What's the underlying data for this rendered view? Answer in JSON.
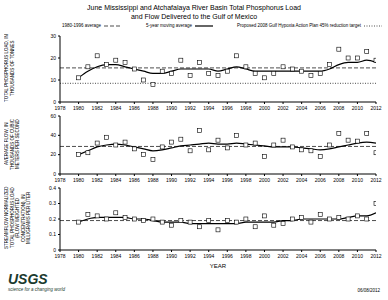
{
  "chart_data": [
    {
      "type": "line",
      "title": [
        "June Mississippi and Atchafalaya River Basin Total Phosphorus Load",
        "and Flow Delivered to the Gulf of Mexico"
      ],
      "y_label": "TOTAL PHOSPHORUS LOAD, IN THOUSANDS OF TONNES",
      "x": [
        1980,
        1981,
        1982,
        1983,
        1984,
        1985,
        1986,
        1987,
        1988,
        1989,
        1990,
        1991,
        1992,
        1993,
        1994,
        1995,
        1996,
        1997,
        1998,
        1999,
        2000,
        2001,
        2002,
        2003,
        2004,
        2005,
        2006,
        2007,
        2008,
        2009,
        2010,
        2011,
        2012
      ],
      "xlim": [
        1978,
        2012
      ],
      "xticks": [
        1978,
        1980,
        1982,
        1984,
        1986,
        1988,
        1990,
        1992,
        1994,
        1996,
        1998,
        2000,
        2002,
        2004,
        2006,
        2008,
        2010,
        2012
      ],
      "ylim": [
        0,
        30
      ],
      "yticks": [
        0,
        10,
        20,
        30
      ],
      "series": [
        {
          "type": "scatter",
          "marker": "square",
          "color": "#000000",
          "values": [
            11,
            16,
            21,
            17,
            19,
            18,
            15,
            10,
            8,
            14,
            13,
            19,
            12,
            18,
            13,
            12,
            14,
            21,
            16,
            13,
            11,
            13,
            16,
            15,
            14,
            12,
            13,
            17,
            24,
            20,
            20,
            23,
            19
          ]
        },
        {
          "name": "1980-1996 average",
          "type": "line",
          "line_style": "dashed",
          "color": "#000000",
          "x": [
            1978,
            2012
          ],
          "values": [
            15.5,
            15.5
          ]
        },
        {
          "name": "5-year moving average",
          "type": "line",
          "line_style": "solid",
          "color": "#000000",
          "values": [
            11,
            14,
            16,
            17,
            17,
            16,
            15,
            14,
            13,
            13,
            14,
            15,
            15,
            15,
            15,
            14,
            15,
            16,
            15,
            14,
            14,
            14,
            14,
            14,
            14,
            14,
            14,
            15,
            17,
            18,
            18,
            19,
            18
          ]
        },
        {
          "name": "Proposed 2008 Gulf Hypoxia Action Plan 45% reduction target",
          "type": "line",
          "line_style": "dotted",
          "color": "#000000",
          "x": [
            1978,
            2012
          ],
          "values": [
            8.5,
            8.5
          ]
        }
      ]
    },
    {
      "type": "line",
      "y_label": "AVERAGE FLOW, IN THOUSANDS OF CUBIC METERS PER SECOND",
      "x": [
        1980,
        1981,
        1982,
        1983,
        1984,
        1985,
        1986,
        1987,
        1988,
        1989,
        1990,
        1991,
        1992,
        1993,
        1994,
        1995,
        1996,
        1997,
        1998,
        1999,
        2000,
        2001,
        2002,
        2003,
        2004,
        2005,
        2006,
        2007,
        2008,
        2009,
        2010,
        2011,
        2012
      ],
      "xlim": [
        1978,
        2012
      ],
      "xticks": [
        1978,
        1980,
        1982,
        1984,
        1986,
        1988,
        1990,
        1992,
        1994,
        1996,
        1998,
        2000,
        2002,
        2004,
        2006,
        2008,
        2010,
        2012
      ],
      "ylim": [
        0,
        60
      ],
      "yticks": [
        0,
        20,
        40,
        60
      ],
      "series": [
        {
          "type": "scatter",
          "marker": "square",
          "color": "#000000",
          "values": [
            20,
            22,
            32,
            38,
            30,
            33,
            26,
            20,
            15,
            28,
            33,
            36,
            24,
            45,
            25,
            35,
            27,
            40,
            30,
            32,
            18,
            30,
            35,
            28,
            25,
            24,
            18,
            30,
            42,
            35,
            34,
            42,
            22
          ]
        },
        {
          "type": "line",
          "line_style": "dashed",
          "color": "#000000",
          "x": [
            1978,
            2012
          ],
          "values": [
            28.5,
            28.5
          ]
        },
        {
          "type": "line",
          "line_style": "solid",
          "color": "#000000",
          "values": [
            20,
            24,
            28,
            30,
            31,
            30,
            28,
            26,
            24,
            25,
            27,
            29,
            30,
            31,
            32,
            31,
            31,
            32,
            31,
            30,
            29,
            28,
            28,
            28,
            27,
            26,
            25,
            26,
            28,
            30,
            32,
            33,
            32
          ]
        }
      ]
    },
    {
      "type": "line",
      "y_label": "STREAMFLOW NORMALIZED TOTAL PHOSPHORUS LOAD (FLOW WEIGHTED CONCENTRATION), IN MILLIGRAMS PER LITER",
      "x_label": "YEAR",
      "x": [
        1980,
        1981,
        1982,
        1983,
        1984,
        1985,
        1986,
        1987,
        1988,
        1989,
        1990,
        1991,
        1992,
        1993,
        1994,
        1995,
        1996,
        1997,
        1998,
        1999,
        2000,
        2001,
        2002,
        2003,
        2004,
        2005,
        2006,
        2007,
        2008,
        2009,
        2010,
        2011,
        2012
      ],
      "xlim": [
        1978,
        2012
      ],
      "xticks": [
        1978,
        1980,
        1982,
        1984,
        1986,
        1988,
        1990,
        1992,
        1994,
        1996,
        1998,
        2000,
        2002,
        2004,
        2006,
        2008,
        2010,
        2012
      ],
      "ylim": [
        0,
        0.4
      ],
      "yticks": [
        0,
        0.1,
        0.2,
        0.3,
        0.4
      ],
      "series": [
        {
          "type": "scatter",
          "marker": "square",
          "color": "#000000",
          "values": [
            0.18,
            0.23,
            0.22,
            0.2,
            0.24,
            0.21,
            0.2,
            0.19,
            0.2,
            0.18,
            0.16,
            0.19,
            0.18,
            0.15,
            0.19,
            0.13,
            0.19,
            0.18,
            0.2,
            0.15,
            0.22,
            0.16,
            0.17,
            0.2,
            0.21,
            0.18,
            0.23,
            0.2,
            0.21,
            0.2,
            0.22,
            0.2,
            0.3
          ]
        },
        {
          "type": "line",
          "line_style": "dashed",
          "color": "#000000",
          "x": [
            1978,
            2012
          ],
          "values": [
            0.19,
            0.19
          ]
        },
        {
          "type": "line",
          "line_style": "solid",
          "color": "#000000",
          "values": [
            0.18,
            0.2,
            0.21,
            0.21,
            0.21,
            0.21,
            0.2,
            0.2,
            0.19,
            0.18,
            0.18,
            0.18,
            0.17,
            0.17,
            0.17,
            0.17,
            0.17,
            0.17,
            0.18,
            0.18,
            0.18,
            0.18,
            0.19,
            0.19,
            0.2,
            0.2,
            0.2,
            0.2,
            0.2,
            0.21,
            0.22,
            0.22,
            0.24
          ]
        }
      ]
    }
  ],
  "footer": {
    "logo": "USGS",
    "tagline": "science for a changing world",
    "date": "06/08/2012"
  }
}
